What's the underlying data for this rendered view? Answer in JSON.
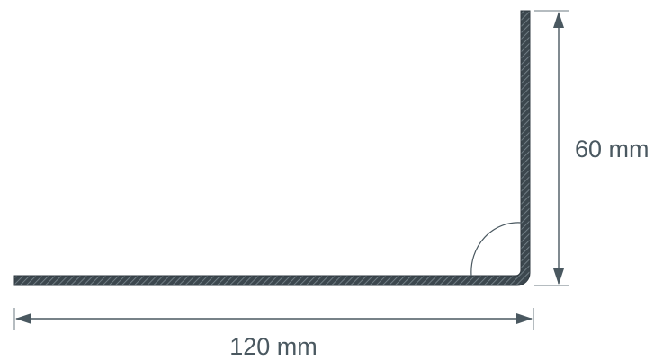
{
  "dimensions": {
    "width_label": "120 mm",
    "height_label": "60 mm"
  },
  "colors": {
    "profile_fill": "#3c474e",
    "profile_hatch": "#7d8a91",
    "dimension": "#4a5860"
  }
}
